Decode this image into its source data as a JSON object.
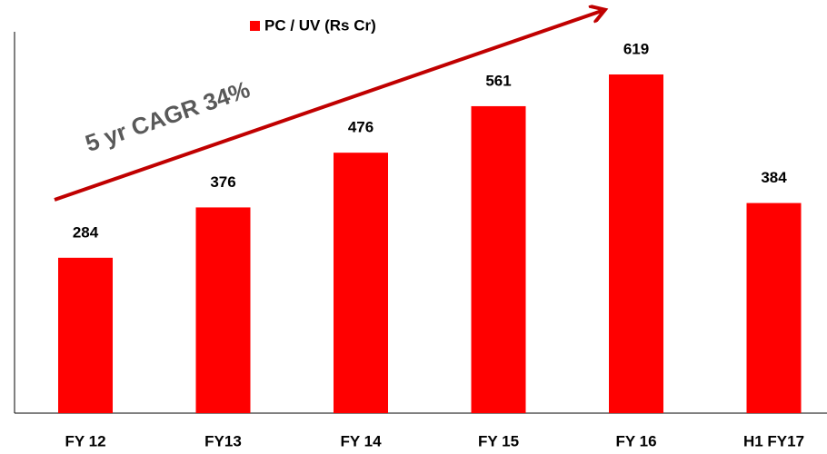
{
  "chart_data": {
    "type": "bar",
    "legend": "PC / UV (Rs Cr)",
    "annotation": "5 yr CAGR 34%",
    "categories": [
      "FY 12",
      "FY13",
      "FY 14",
      "FY 15",
      "FY 16",
      "H1 FY17"
    ],
    "values": [
      284,
      376,
      476,
      561,
      619,
      384
    ],
    "color": "#ff0000",
    "ylim": [
      0,
      697
    ]
  }
}
